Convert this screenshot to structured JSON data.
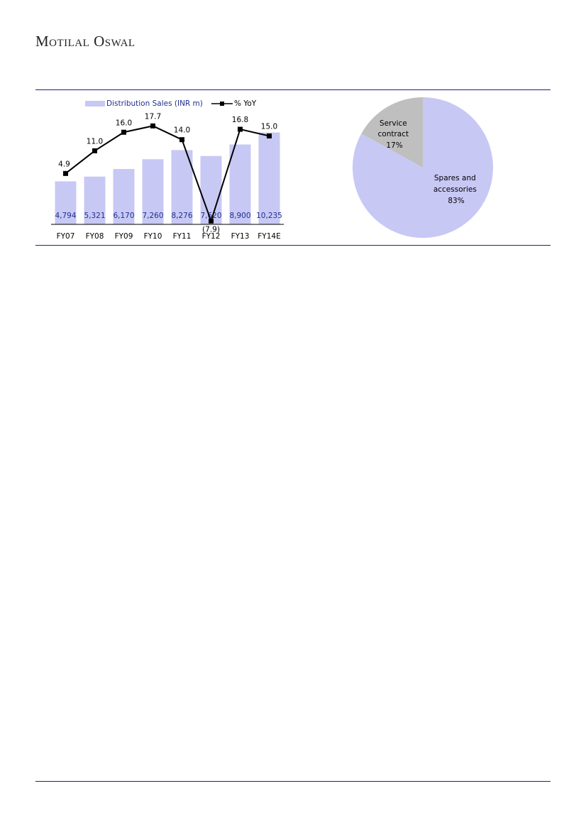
{
  "header": {
    "brand": "Motilal Oswal"
  },
  "chart_data": [
    {
      "type": "bar",
      "categories": [
        "FY07",
        "FY08",
        "FY09",
        "FY10",
        "FY11",
        "FY12",
        "FY13",
        "FY14E"
      ],
      "series": [
        {
          "name": "Distribution Sales (INR m)",
          "type": "bar",
          "axis": "primary",
          "values": [
            4794,
            5321,
            6170,
            7260,
            8276,
            7620,
            8900,
            10235
          ],
          "labels": [
            "4,794",
            "5,321",
            "6,170",
            "7,260",
            "8,276",
            "7,620",
            "8,900",
            "10,235"
          ]
        },
        {
          "name": "% YoY",
          "type": "line",
          "axis": "secondary",
          "values": [
            4.9,
            11.0,
            16.0,
            17.7,
            14.0,
            -7.9,
            16.8,
            15.0
          ],
          "labels": [
            "4.9",
            "11.0",
            "16.0",
            "17.7",
            "14.0",
            "(7.9)",
            "16.8",
            "15.0"
          ]
        }
      ],
      "ylim_primary": [
        0,
        12500
      ],
      "ylim_secondary": [
        -8.8,
        21.4
      ],
      "legend_position": "top",
      "grid": false,
      "colors": {
        "bar": "#c8c8f5",
        "bar_label": "#1f2f8f",
        "line": "#000000"
      }
    },
    {
      "type": "pie",
      "slices": [
        {
          "label": "Service contract",
          "value": 17,
          "value_label": "17%",
          "color": "#bfbfbf"
        },
        {
          "label": "Spares and accessories",
          "value": 83,
          "value_label": "83%",
          "color": "#c8c8f5"
        }
      ]
    }
  ]
}
